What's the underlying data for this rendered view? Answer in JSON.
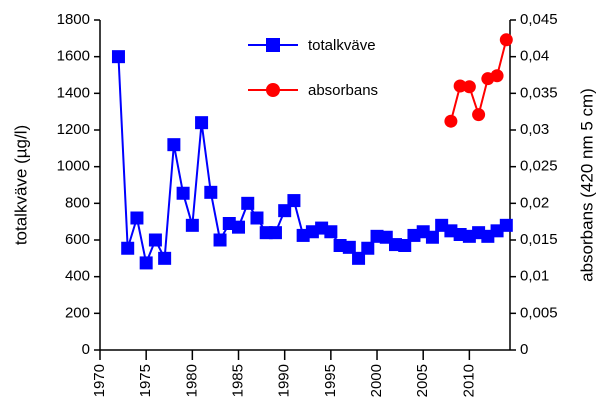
{
  "chart_data": {
    "type": "line",
    "y_label": "totalkväve (µg/l)",
    "y2_label": "absorbans (420 nm 5 cm)",
    "x": [
      1972,
      1973,
      1974,
      1975,
      1976,
      1977,
      1978,
      1979,
      1980,
      1981,
      1982,
      1983,
      1984,
      1985,
      1986,
      1987,
      1988,
      1989,
      1990,
      1991,
      1992,
      1993,
      1994,
      1995,
      1996,
      1997,
      1998,
      1999,
      2000,
      2001,
      2002,
      2003,
      2004,
      2005,
      2006,
      2007,
      2008,
      2009,
      2010,
      2011,
      2012,
      2013,
      2014
    ],
    "series": [
      {
        "name": "totalkväve",
        "color": "#0000ff",
        "marker": "square",
        "values": [
          1600,
          555,
          720,
          475,
          600,
          500,
          1120,
          855,
          680,
          1240,
          860,
          600,
          690,
          670,
          800,
          720,
          640,
          640,
          760,
          815,
          625,
          645,
          665,
          645,
          570,
          560,
          500,
          555,
          620,
          615,
          575,
          570,
          625,
          645,
          615,
          680,
          650,
          630,
          620,
          640,
          620,
          650,
          680
        ]
      },
      {
        "name": "absorbans",
        "color": "#ff0000",
        "marker": "circle",
        "axis": "y2",
        "values": [
          null,
          null,
          null,
          null,
          null,
          null,
          null,
          null,
          null,
          null,
          null,
          null,
          null,
          null,
          null,
          null,
          null,
          null,
          null,
          null,
          null,
          null,
          null,
          null,
          null,
          null,
          null,
          null,
          null,
          null,
          null,
          null,
          null,
          null,
          null,
          null,
          0.0312,
          0.036,
          0.0359,
          0.0321,
          0.037,
          0.0374,
          0.0423
        ]
      }
    ],
    "xlim": [
      1970,
      2014.4
    ],
    "xticks": [
      1970,
      1975,
      1980,
      1985,
      1990,
      1995,
      2000,
      2005,
      2010
    ],
    "ylim": [
      0,
      1800
    ],
    "yticks": [
      0,
      200,
      400,
      600,
      800,
      1000,
      1200,
      1400,
      1600,
      1800
    ],
    "y2lim": [
      0,
      0.045
    ],
    "y2ticks": [
      0,
      {
        "value": 0.005,
        "label": "0,005"
      },
      {
        "value": 0.01,
        "label": "0,01"
      },
      {
        "value": 0.015,
        "label": "0,015"
      },
      {
        "value": 0.02,
        "label": "0,02"
      },
      {
        "value": 0.025,
        "label": "0,025"
      },
      {
        "value": 0.03,
        "label": "0,03"
      },
      {
        "value": 0.035,
        "label": "0,035"
      },
      {
        "value": 0.04,
        "label": "0,04"
      },
      {
        "value": 0.045,
        "label": "0,045"
      }
    ],
    "legend": "top"
  }
}
